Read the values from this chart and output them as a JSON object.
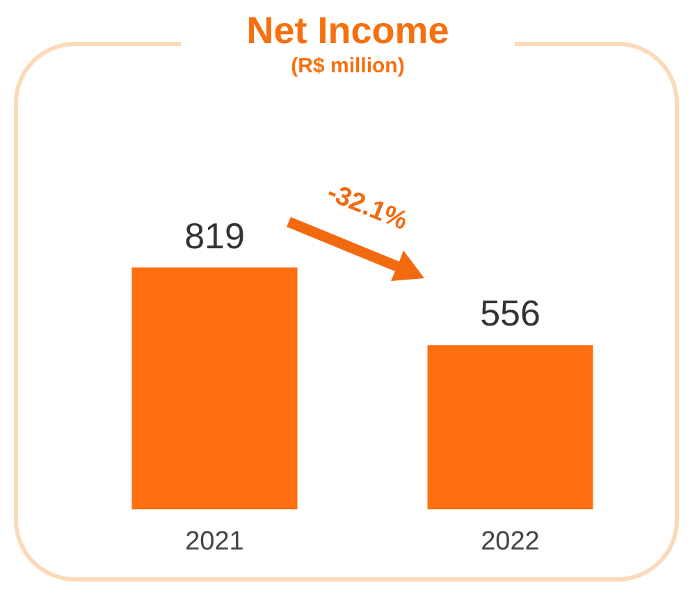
{
  "chart_data": {
    "type": "bar",
    "title": "Net Income",
    "subtitle": "(R$ million)",
    "categories": [
      "2021",
      "2022"
    ],
    "values": [
      819,
      556
    ],
    "color": "#ff6f0f",
    "data_labels": true,
    "annotations": [
      "-32.1%"
    ]
  }
}
